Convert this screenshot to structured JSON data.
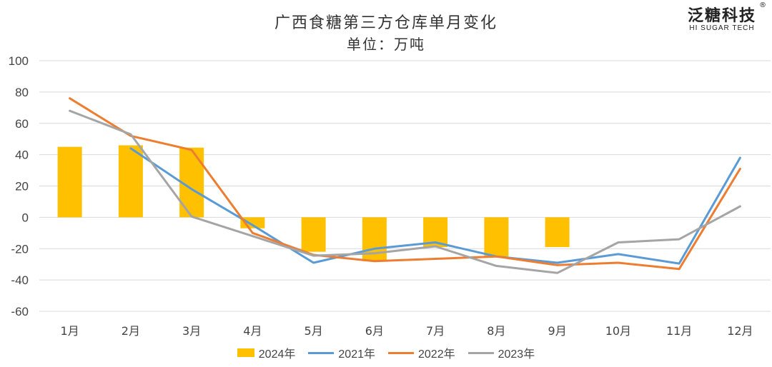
{
  "chart_data": {
    "type": "bar+line",
    "title": "广西食糖第三方仓库单月变化",
    "subtitle": "单位：万吨",
    "categories": [
      "1月",
      "2月",
      "3月",
      "4月",
      "5月",
      "6月",
      "7月",
      "8月",
      "9月",
      "10月",
      "11月",
      "12月"
    ],
    "ylim": [
      -60,
      100
    ],
    "yticks": [
      100,
      80,
      60,
      40,
      20,
      0,
      -20,
      -40,
      -60
    ],
    "grid": true,
    "legend_position": "bottom",
    "series": [
      {
        "name": "2024年",
        "kind": "bar",
        "color": "#FFC000",
        "values": [
          45,
          46,
          44.5,
          -7,
          -22,
          -28,
          -19,
          -25,
          -19,
          null,
          null,
          null
        ]
      },
      {
        "name": "2021年",
        "kind": "line",
        "color": "#5B9BD5",
        "values": [
          null,
          44,
          18,
          -5,
          -29,
          -20,
          -16,
          -25,
          -29,
          -23.5,
          -29.5,
          38
        ]
      },
      {
        "name": "2022年",
        "kind": "line",
        "color": "#ED7D31",
        "values": [
          76,
          52,
          43,
          -10,
          -24,
          -28,
          -26.5,
          -25,
          -30.5,
          -29,
          -33,
          31
        ]
      },
      {
        "name": "2023年",
        "kind": "line",
        "color": "#A5A5A5",
        "values": [
          68,
          53,
          0.5,
          -12,
          -24.5,
          -23,
          -18.5,
          -31,
          -35.5,
          -16,
          -14,
          7
        ]
      }
    ]
  },
  "logo": {
    "cn": "泛糖科技",
    "en": "HI SUGAR TECH",
    "reg": "®"
  }
}
